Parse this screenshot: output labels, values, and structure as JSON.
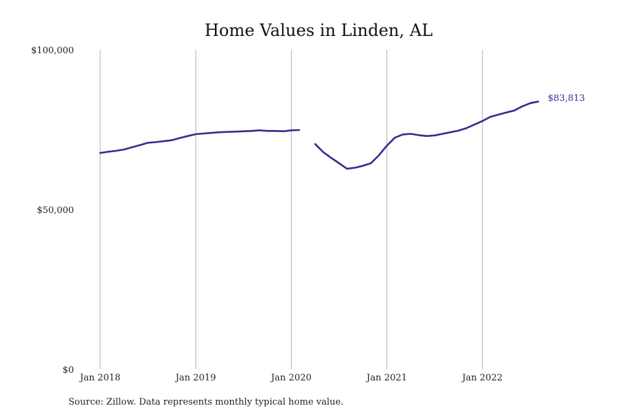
{
  "source_note": "Source: Zillow. Data represents monthly typical home value.",
  "colors": {
    "line": "#2e2e8f",
    "grid": "#b0b0b0",
    "text": "#222222"
  },
  "chart_data": {
    "type": "line",
    "title": "Home Values in Linden, AL",
    "xlabel": "",
    "ylabel": "",
    "ylim": [
      0,
      100000
    ],
    "xlim": [
      "2018-01",
      "2022-10"
    ],
    "y_ticks": [
      {
        "value": 0,
        "label": "$0"
      },
      {
        "value": 50000,
        "label": "$50,000"
      },
      {
        "value": 100000,
        "label": "$100,000"
      }
    ],
    "x_ticks": [
      {
        "date": "2018-01",
        "label": "Jan 2018"
      },
      {
        "date": "2019-01",
        "label": "Jan 2019"
      },
      {
        "date": "2020-01",
        "label": "Jan 2020"
      },
      {
        "date": "2021-01",
        "label": "Jan 2021"
      },
      {
        "date": "2022-01",
        "label": "Jan 2022"
      }
    ],
    "grid": {
      "vertical": true,
      "horizontal": false
    },
    "end_label": "$83,813",
    "series": [
      {
        "segments": [
          [
            [
              "2018-01",
              67700
            ],
            [
              "2018-02",
              68100
            ],
            [
              "2018-03",
              68400
            ],
            [
              "2018-04",
              68800
            ],
            [
              "2018-05",
              69500
            ],
            [
              "2018-06",
              70200
            ],
            [
              "2018-07",
              70900
            ],
            [
              "2018-08",
              71100
            ],
            [
              "2018-09",
              71400
            ],
            [
              "2018-10",
              71700
            ],
            [
              "2018-11",
              72400
            ],
            [
              "2018-12",
              73000
            ],
            [
              "2019-01",
              73600
            ],
            [
              "2019-02",
              73800
            ],
            [
              "2019-03",
              74000
            ],
            [
              "2019-04",
              74200
            ],
            [
              "2019-05",
              74300
            ],
            [
              "2019-06",
              74400
            ],
            [
              "2019-07",
              74500
            ],
            [
              "2019-08",
              74600
            ],
            [
              "2019-09",
              74800
            ],
            [
              "2019-10",
              74600
            ],
            [
              "2019-11",
              74600
            ],
            [
              "2019-12",
              74500
            ],
            [
              "2020-01",
              74800
            ],
            [
              "2020-02",
              74900
            ]
          ],
          [
            [
              "2020-04",
              70500
            ],
            [
              "2020-05",
              68000
            ],
            [
              "2020-06",
              66200
            ],
            [
              "2020-07",
              64500
            ],
            [
              "2020-08",
              62800
            ],
            [
              "2020-09",
              63100
            ],
            [
              "2020-10",
              63700
            ],
            [
              "2020-11",
              64500
            ],
            [
              "2020-12",
              67000
            ],
            [
              "2021-01",
              70000
            ],
            [
              "2021-02",
              72500
            ],
            [
              "2021-03",
              73500
            ],
            [
              "2021-04",
              73700
            ],
            [
              "2021-05",
              73300
            ],
            [
              "2021-06",
              73000
            ],
            [
              "2021-07",
              73200
            ],
            [
              "2021-08",
              73700
            ],
            [
              "2021-09",
              74200
            ],
            [
              "2021-10",
              74700
            ],
            [
              "2021-11",
              75500
            ],
            [
              "2021-12",
              76600
            ],
            [
              "2022-01",
              77700
            ],
            [
              "2022-02",
              79000
            ],
            [
              "2022-03",
              79700
            ],
            [
              "2022-04",
              80400
            ],
            [
              "2022-05",
              81000
            ],
            [
              "2022-06",
              82300
            ],
            [
              "2022-07",
              83300
            ],
            [
              "2022-08",
              83813
            ]
          ]
        ]
      }
    ]
  }
}
